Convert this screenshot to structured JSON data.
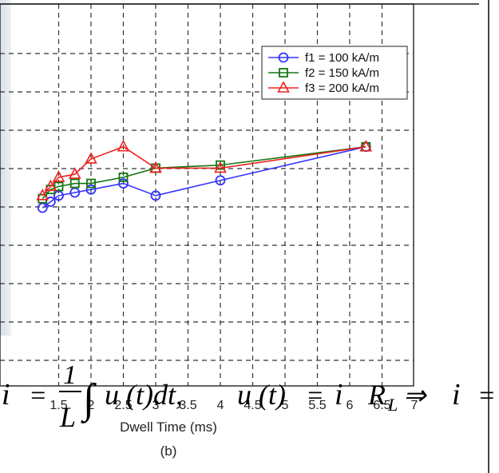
{
  "chart_data": {
    "type": "line",
    "xlabel": "Dwell Time (ms)",
    "subcaption": "(b)",
    "xlim": [
      1.25,
      7
    ],
    "x_tick_labels": [
      "1.5",
      "2",
      "2.5",
      "3",
      "3.5",
      "4",
      "4.5",
      "5",
      "5.5",
      "6",
      "6.5",
      "7"
    ],
    "x_tick_values": [
      1.5,
      2,
      2.5,
      3,
      3.5,
      4,
      4.5,
      5,
      5.5,
      6,
      6.5,
      7
    ],
    "grid": true,
    "legend_position": "top-right",
    "series": [
      {
        "name": "f1 = 100 kA/m",
        "color": "#3333ff",
        "marker": "circle",
        "x": [
          1.25,
          1.375,
          1.5,
          1.75,
          2,
          2.5,
          3,
          4,
          6.25
        ],
        "y": [
          0.9,
          0.92,
          0.94,
          0.95,
          0.96,
          0.98,
          0.94,
          0.99,
          1.1
        ]
      },
      {
        "name": "f2 = 150 kA/m",
        "color": "#117711",
        "marker": "square",
        "x": [
          1.25,
          1.375,
          1.5,
          1.75,
          2,
          2.5,
          3,
          4,
          6.25
        ],
        "y": [
          0.93,
          0.96,
          0.97,
          0.98,
          0.98,
          1.0,
          1.03,
          1.04,
          1.1
        ]
      },
      {
        "name": "f3 = 200 kA/m",
        "color": "#ee2222",
        "marker": "triangle",
        "x": [
          1.25,
          1.375,
          1.5,
          1.75,
          2,
          2.5,
          3,
          4,
          6.25
        ],
        "y": [
          0.94,
          0.97,
          1.0,
          1.01,
          1.06,
          1.1,
          1.03,
          1.03,
          1.1
        ]
      }
    ]
  },
  "equation": {
    "lhs": "i",
    "eq1": "=",
    "frac_num": "1",
    "frac_den": "L",
    "integral": "∫",
    "integrand": "u (t)dt,",
    "u_of_t": "u (t)",
    "eq2": "=",
    "i_term": "i",
    "r_term": "R",
    "r_sub": "L",
    "arrow": "⇒",
    "i_end": "i",
    "eq3": "="
  }
}
